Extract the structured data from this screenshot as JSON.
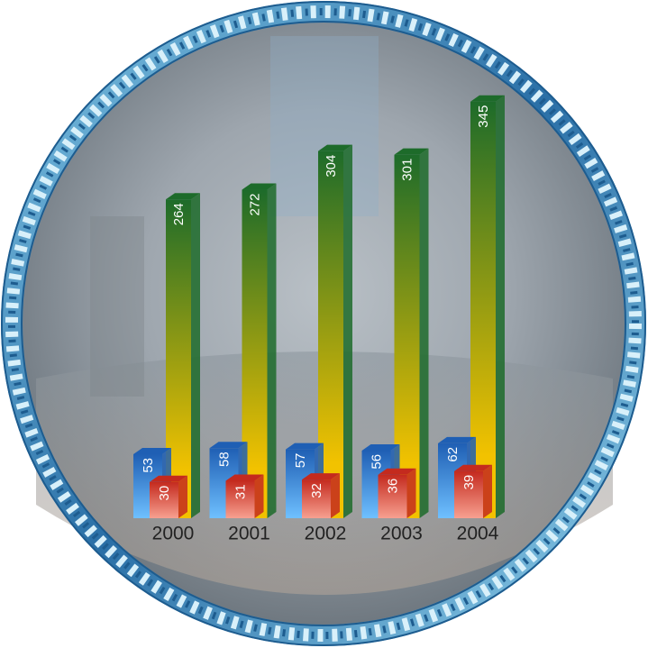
{
  "chart_data": {
    "type": "bar",
    "categories": [
      "2000",
      "2001",
      "2002",
      "2003",
      "2004"
    ],
    "series": [
      {
        "color": "#1d6b2a",
        "values": [
          264,
          272,
          304,
          301,
          345
        ]
      },
      {
        "color": "#1f5fb4",
        "values": [
          53,
          58,
          57,
          56,
          62
        ]
      },
      {
        "color": "#c42a1e",
        "values": [
          30,
          31,
          32,
          36,
          39
        ]
      }
    ]
  }
}
